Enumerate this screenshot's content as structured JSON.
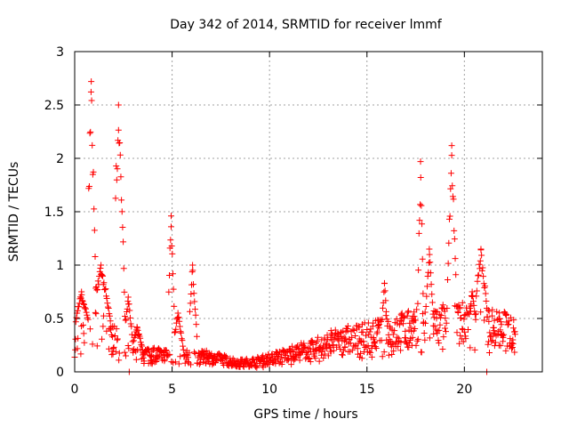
{
  "chart_data": {
    "type": "scatter",
    "title": "Day 342 of 2014, SRMTID for receiver lmmf",
    "xlabel": "GPS time / hours",
    "ylabel": "SRMTID / TECUs",
    "xlim": [
      0,
      24
    ],
    "ylim": [
      0,
      3
    ],
    "xticks": [
      0,
      5,
      10,
      15,
      20
    ],
    "xtick_labels": [
      "0",
      "5",
      "10",
      "15",
      "20"
    ],
    "yticks": [
      0,
      0.5,
      1,
      1.5,
      2,
      2.5,
      3
    ],
    "ytick_labels": [
      "0",
      "0.5",
      "1",
      "1.5",
      "2",
      "2.5",
      "3"
    ],
    "grid": true,
    "marker": "+",
    "color": "#ff0000",
    "series": [
      {
        "name": "SRMTID",
        "x_range": [
          0,
          22.6
        ],
        "baseline_profile": [
          [
            0.0,
            0.25
          ],
          [
            1.0,
            0.4
          ],
          [
            2.0,
            0.3
          ],
          [
            3.0,
            0.18
          ],
          [
            5.0,
            0.15
          ],
          [
            7.0,
            0.13
          ],
          [
            8.5,
            0.08
          ],
          [
            9.5,
            0.1
          ],
          [
            10.5,
            0.14
          ],
          [
            12.0,
            0.2
          ],
          [
            13.5,
            0.28
          ],
          [
            15.0,
            0.32
          ],
          [
            16.5,
            0.38
          ],
          [
            18.0,
            0.42
          ],
          [
            19.5,
            0.45
          ],
          [
            21.0,
            0.42
          ],
          [
            22.6,
            0.38
          ]
        ],
        "features": [
          {
            "center": 0.35,
            "x_from": 0.05,
            "x_to": 0.8,
            "peak": 0.75
          },
          {
            "center": 0.85,
            "x_from": 0.7,
            "x_to": 1.1,
            "peak": 2.72
          },
          {
            "center": 1.35,
            "x_from": 1.1,
            "x_to": 1.9,
            "peak": 1.0
          },
          {
            "center": 2.25,
            "x_from": 2.1,
            "x_to": 2.6,
            "peak": 2.5
          },
          {
            "center": 2.75,
            "x_from": 2.6,
            "x_to": 3.0,
            "peak": 0.7
          },
          {
            "center": 3.2,
            "x_from": 3.0,
            "x_to": 3.5,
            "peak": 0.42
          },
          {
            "center": 4.95,
            "x_from": 4.8,
            "x_to": 5.15,
            "peak": 1.46
          },
          {
            "center": 5.3,
            "x_from": 5.15,
            "x_to": 5.6,
            "peak": 0.55
          },
          {
            "center": 6.05,
            "x_from": 5.9,
            "x_to": 6.3,
            "peak": 1.0
          },
          {
            "center": 15.9,
            "x_from": 15.75,
            "x_to": 16.05,
            "peak": 0.83
          },
          {
            "center": 17.75,
            "x_from": 17.6,
            "x_to": 17.9,
            "peak": 1.97
          },
          {
            "center": 18.2,
            "x_from": 18.0,
            "x_to": 18.4,
            "peak": 1.15
          },
          {
            "center": 19.35,
            "x_from": 19.1,
            "x_to": 19.6,
            "peak": 2.12
          },
          {
            "center": 20.85,
            "x_from": 20.6,
            "x_to": 21.2,
            "peak": 1.15
          },
          {
            "center": 20.4,
            "x_from": 20.2,
            "x_to": 20.6,
            "peak": 0.75
          }
        ],
        "min_points": [
          {
            "x": 2.8,
            "y": 0.0
          },
          {
            "x": 21.15,
            "y": 0.0
          }
        ]
      }
    ]
  }
}
